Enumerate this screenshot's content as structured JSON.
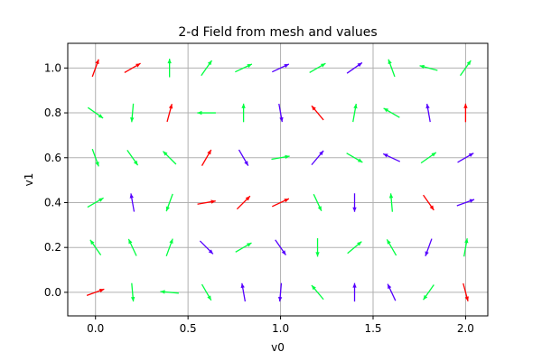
{
  "chart_data": {
    "type": "quiver",
    "title": "2-d Field from mesh and values",
    "xlabel": "v0",
    "ylabel": "v1",
    "xlim": [
      -0.15,
      2.12
    ],
    "ylim": [
      -0.105,
      1.11
    ],
    "xticks": [
      0.0,
      0.5,
      1.0,
      1.5,
      2.0
    ],
    "xtick_labels": [
      "0.0",
      "0.5",
      "1.0",
      "1.5",
      "2.0"
    ],
    "yticks": [
      0.0,
      0.2,
      0.4,
      0.6,
      0.8,
      1.0
    ],
    "ytick_labels": [
      "0.0",
      "0.2",
      "0.4",
      "0.6",
      "0.8",
      "1.0"
    ],
    "grid": true,
    "grid_color": "#b0b0b0",
    "arrow_scale_data_units": 0.1,
    "colors": {
      "red": "#ff0000",
      "green": "#00ff40",
      "blue": "#5500ff"
    },
    "vectors": [
      {
        "x": 0.0,
        "y": 0.0,
        "angle": 20,
        "color": "red"
      },
      {
        "x": 0.2,
        "y": 0.0,
        "angle": 275,
        "color": "green"
      },
      {
        "x": 0.4,
        "y": 0.0,
        "angle": 175,
        "color": "green"
      },
      {
        "x": 0.6,
        "y": 0.0,
        "angle": 300,
        "color": "green"
      },
      {
        "x": 0.8,
        "y": 0.0,
        "angle": 100,
        "color": "blue"
      },
      {
        "x": 1.0,
        "y": 0.0,
        "angle": 265,
        "color": "blue"
      },
      {
        "x": 1.2,
        "y": 0.0,
        "angle": 130,
        "color": "green"
      },
      {
        "x": 1.4,
        "y": 0.0,
        "angle": 90,
        "color": "blue"
      },
      {
        "x": 1.6,
        "y": 0.0,
        "angle": 115,
        "color": "blue"
      },
      {
        "x": 1.8,
        "y": 0.0,
        "angle": 235,
        "color": "green"
      },
      {
        "x": 2.0,
        "y": 0.0,
        "angle": 285,
        "color": "red"
      },
      {
        "x": 0.0,
        "y": 0.2,
        "angle": 125,
        "color": "green"
      },
      {
        "x": 0.2,
        "y": 0.2,
        "angle": 115,
        "color": "green"
      },
      {
        "x": 0.4,
        "y": 0.2,
        "angle": 70,
        "color": "green"
      },
      {
        "x": 0.6,
        "y": 0.2,
        "angle": 315,
        "color": "blue"
      },
      {
        "x": 0.8,
        "y": 0.2,
        "angle": 30,
        "color": "green"
      },
      {
        "x": 1.0,
        "y": 0.2,
        "angle": 305,
        "color": "blue"
      },
      {
        "x": 1.2,
        "y": 0.2,
        "angle": 270,
        "color": "green"
      },
      {
        "x": 1.4,
        "y": 0.2,
        "angle": 40,
        "color": "green"
      },
      {
        "x": 1.6,
        "y": 0.2,
        "angle": 120,
        "color": "green"
      },
      {
        "x": 1.8,
        "y": 0.2,
        "angle": 250,
        "color": "blue"
      },
      {
        "x": 2.0,
        "y": 0.2,
        "angle": 80,
        "color": "green"
      },
      {
        "x": 0.0,
        "y": 0.4,
        "angle": 30,
        "color": "green"
      },
      {
        "x": 0.2,
        "y": 0.4,
        "angle": 100,
        "color": "blue"
      },
      {
        "x": 0.4,
        "y": 0.4,
        "angle": 250,
        "color": "green"
      },
      {
        "x": 0.6,
        "y": 0.4,
        "angle": 10,
        "color": "red"
      },
      {
        "x": 0.8,
        "y": 0.4,
        "angle": 45,
        "color": "red"
      },
      {
        "x": 1.0,
        "y": 0.4,
        "angle": 25,
        "color": "red"
      },
      {
        "x": 1.2,
        "y": 0.4,
        "angle": 295,
        "color": "green"
      },
      {
        "x": 1.4,
        "y": 0.4,
        "angle": 270,
        "color": "blue"
      },
      {
        "x": 1.6,
        "y": 0.4,
        "angle": 95,
        "color": "green"
      },
      {
        "x": 1.8,
        "y": 0.4,
        "angle": 305,
        "color": "red"
      },
      {
        "x": 2.0,
        "y": 0.4,
        "angle": 20,
        "color": "blue"
      },
      {
        "x": 0.0,
        "y": 0.6,
        "angle": 290,
        "color": "green"
      },
      {
        "x": 0.2,
        "y": 0.6,
        "angle": 305,
        "color": "green"
      },
      {
        "x": 0.4,
        "y": 0.6,
        "angle": 135,
        "color": "green"
      },
      {
        "x": 0.6,
        "y": 0.6,
        "angle": 60,
        "color": "red"
      },
      {
        "x": 0.8,
        "y": 0.6,
        "angle": 300,
        "color": "blue"
      },
      {
        "x": 1.0,
        "y": 0.6,
        "angle": 10,
        "color": "green"
      },
      {
        "x": 1.2,
        "y": 0.6,
        "angle": 50,
        "color": "blue"
      },
      {
        "x": 1.4,
        "y": 0.6,
        "angle": 330,
        "color": "green"
      },
      {
        "x": 1.6,
        "y": 0.6,
        "angle": 155,
        "color": "blue"
      },
      {
        "x": 1.8,
        "y": 0.6,
        "angle": 35,
        "color": "green"
      },
      {
        "x": 2.0,
        "y": 0.6,
        "angle": 30,
        "color": "blue"
      },
      {
        "x": 0.0,
        "y": 0.8,
        "angle": 325,
        "color": "green"
      },
      {
        "x": 0.2,
        "y": 0.8,
        "angle": 265,
        "color": "green"
      },
      {
        "x": 0.4,
        "y": 0.8,
        "angle": 75,
        "color": "red"
      },
      {
        "x": 0.6,
        "y": 0.8,
        "angle": 180,
        "color": "green"
      },
      {
        "x": 0.8,
        "y": 0.8,
        "angle": 90,
        "color": "green"
      },
      {
        "x": 1.0,
        "y": 0.8,
        "angle": 280,
        "color": "blue"
      },
      {
        "x": 1.2,
        "y": 0.8,
        "angle": 130,
        "color": "red"
      },
      {
        "x": 1.4,
        "y": 0.8,
        "angle": 80,
        "color": "green"
      },
      {
        "x": 1.6,
        "y": 0.8,
        "angle": 150,
        "color": "green"
      },
      {
        "x": 1.8,
        "y": 0.8,
        "angle": 100,
        "color": "blue"
      },
      {
        "x": 2.0,
        "y": 0.8,
        "angle": 90,
        "color": "red"
      },
      {
        "x": 0.0,
        "y": 1.0,
        "angle": 70,
        "color": "red"
      },
      {
        "x": 0.2,
        "y": 1.0,
        "angle": 30,
        "color": "red"
      },
      {
        "x": 0.4,
        "y": 1.0,
        "angle": 90,
        "color": "green"
      },
      {
        "x": 0.6,
        "y": 1.0,
        "angle": 55,
        "color": "green"
      },
      {
        "x": 0.8,
        "y": 1.0,
        "angle": 25,
        "color": "green"
      },
      {
        "x": 1.0,
        "y": 1.0,
        "angle": 25,
        "color": "blue"
      },
      {
        "x": 1.2,
        "y": 1.0,
        "angle": 30,
        "color": "green"
      },
      {
        "x": 1.4,
        "y": 1.0,
        "angle": 35,
        "color": "blue"
      },
      {
        "x": 1.6,
        "y": 1.0,
        "angle": 110,
        "color": "green"
      },
      {
        "x": 1.8,
        "y": 1.0,
        "angle": 165,
        "color": "green"
      },
      {
        "x": 2.0,
        "y": 1.0,
        "angle": 55,
        "color": "green"
      }
    ]
  }
}
